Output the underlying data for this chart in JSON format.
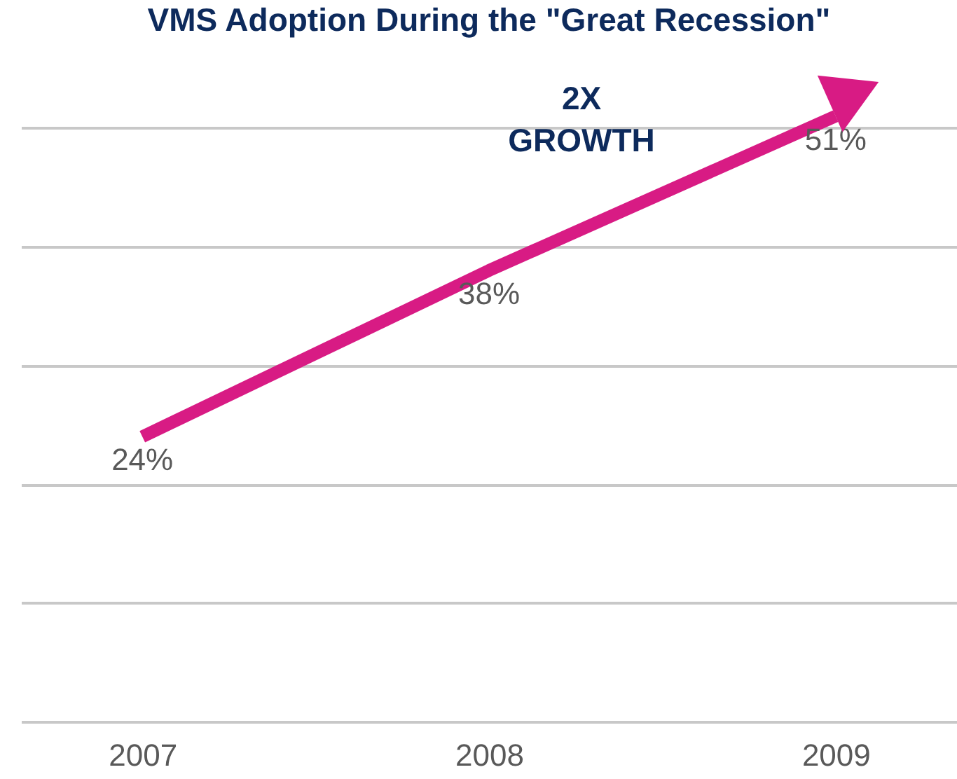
{
  "chart_data": {
    "type": "line",
    "title": "VMS Adoption During the \"Great Recession\"",
    "categories": [
      "2007",
      "2008",
      "2009"
    ],
    "series": [
      {
        "color": "#d81b84",
        "values": [
          24,
          38,
          51
        ],
        "value_labels": [
          "24%",
          "38%",
          "51%"
        ]
      }
    ],
    "annotations": [
      "2X GROWTH"
    ],
    "grid": "y",
    "tick_labels": "x",
    "marker": "none"
  }
}
